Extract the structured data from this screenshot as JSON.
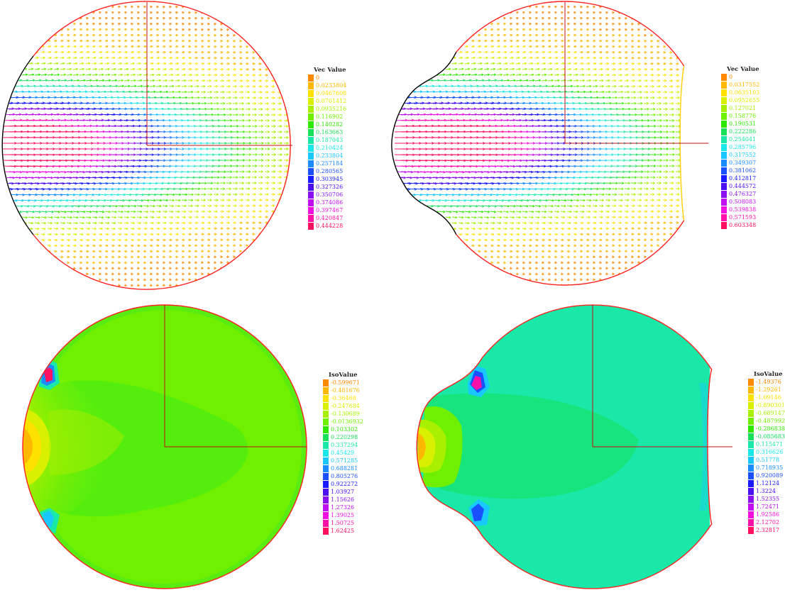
{
  "panels": [
    {
      "id": "velocity-original",
      "type": "vector",
      "legend_title": "Vec Value",
      "legend_values": [
        "0",
        "0.0233804",
        "0.0467608",
        "0.0701412",
        "0.0935216",
        "0.116902",
        "0.140282",
        "0.163663",
        "0.187043",
        "0.210424",
        "0.233804",
        "0.257184",
        "0.280565",
        "0.303945",
        "0.327326",
        "0.350706",
        "0.374086",
        "0.397467",
        "0.420847",
        "0.444228"
      ]
    },
    {
      "id": "velocity-deformed",
      "type": "vector",
      "legend_title": "Vec Value",
      "legend_values": [
        "0",
        "0.0317552",
        "0.0635103",
        "0.0952655",
        "0.127021",
        "0.158776",
        "0.190531",
        "0.222286",
        "0.254041",
        "0.285796",
        "0.317552",
        "0.349307",
        "0.381062",
        "0.412817",
        "0.444572",
        "0.476327",
        "0.508083",
        "0.539838",
        "0.571593",
        "0.603348"
      ]
    },
    {
      "id": "pressure-original",
      "type": "contour",
      "legend_title": "IsoValue",
      "legend_values": [
        "-0.599671",
        "-0.481676",
        "-0.36468",
        "-0.247684",
        "-0.130689",
        "-0.0136932",
        "0.103302",
        "0.220298",
        "0.337294",
        "0.45429",
        "0.571285",
        "0.688281",
        "0.805276",
        "0.922272",
        "1.03927",
        "1.15626",
        "1.27326",
        "1.39025",
        "1.50725",
        "1.62425"
      ]
    },
    {
      "id": "pressure-deformed",
      "type": "contour",
      "legend_title": "IsoValue",
      "legend_values": [
        "-1.49376",
        "-1.29261",
        "-1.09146",
        "-0.890301",
        "-0.689147",
        "-0.487992",
        "-0.286838",
        "-0.0856834",
        "0.115471",
        "0.316626",
        "0.51778",
        "0.718935",
        "0.920089",
        "1.12124",
        "1.3224",
        "1.52355",
        "1.72471",
        "1.92586",
        "2.12702",
        "2.32817"
      ]
    }
  ],
  "palette": [
    "#ff8a00",
    "#ffb800",
    "#ffe100",
    "#d9f000",
    "#a8f000",
    "#6ef000",
    "#2fe800",
    "#18e05a",
    "#1ae8a8",
    "#1ae8e8",
    "#18c8ff",
    "#1a8cff",
    "#1a50ff",
    "#1a1aff",
    "#4a10f0",
    "#8a10f0",
    "#c010f0",
    "#f010e0",
    "#ff10a8",
    "#ff1060"
  ]
}
